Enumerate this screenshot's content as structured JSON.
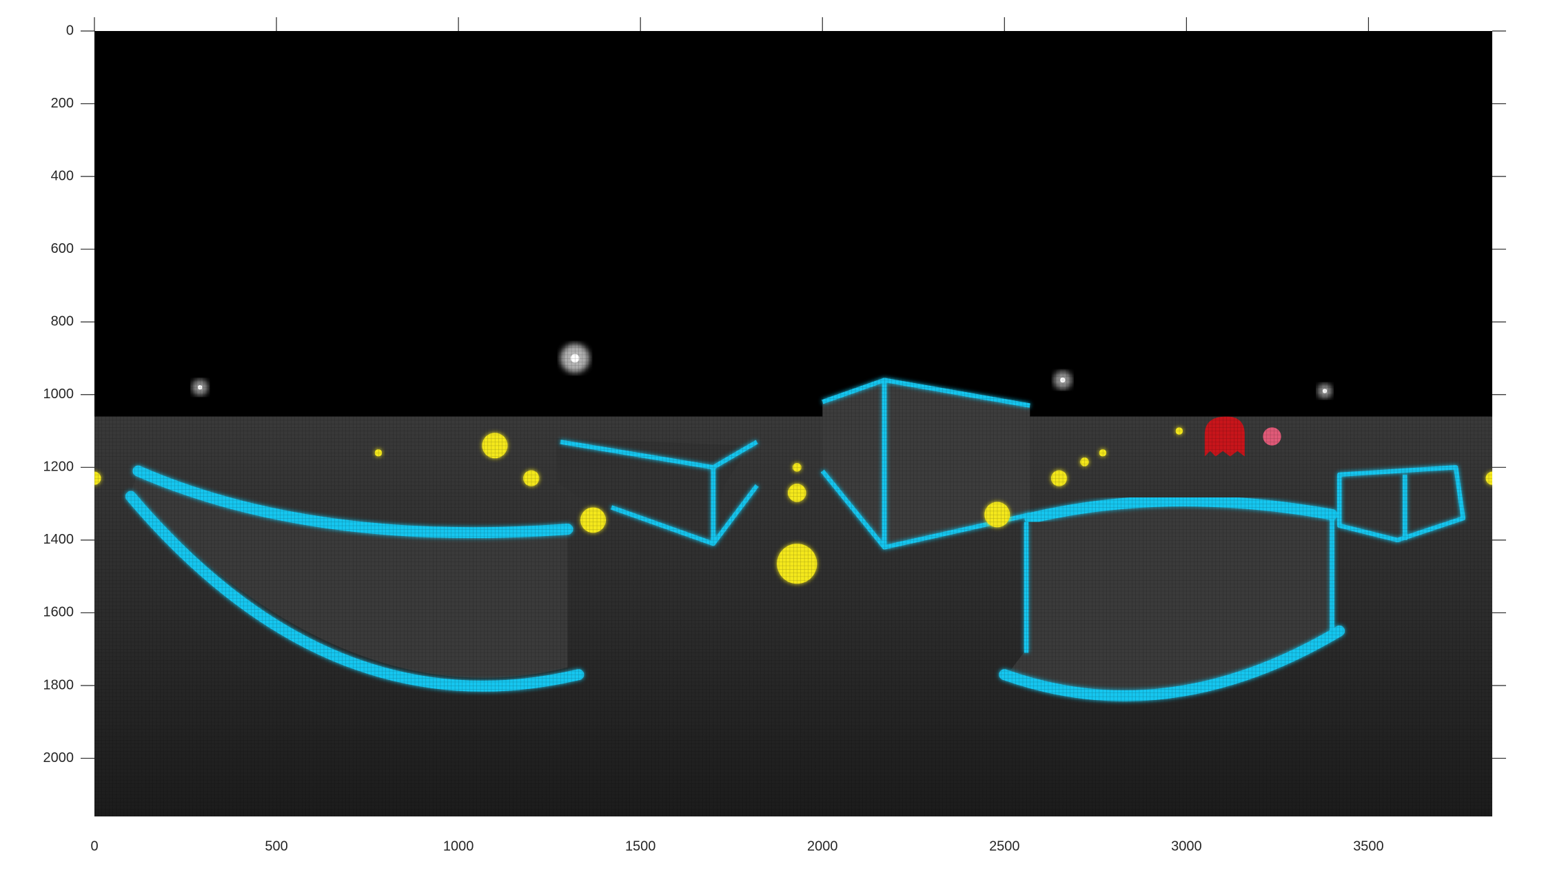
{
  "chart_data": {
    "type": "image",
    "xlim": [
      0,
      3840
    ],
    "ylim": [
      0,
      2160
    ],
    "y_reversed": true,
    "xticks": [
      0,
      500,
      1000,
      1500,
      2000,
      2500,
      3000,
      3500
    ],
    "yticks": [
      0,
      200,
      400,
      600,
      800,
      1000,
      1200,
      1400,
      1600,
      1800,
      2000
    ]
  }
}
